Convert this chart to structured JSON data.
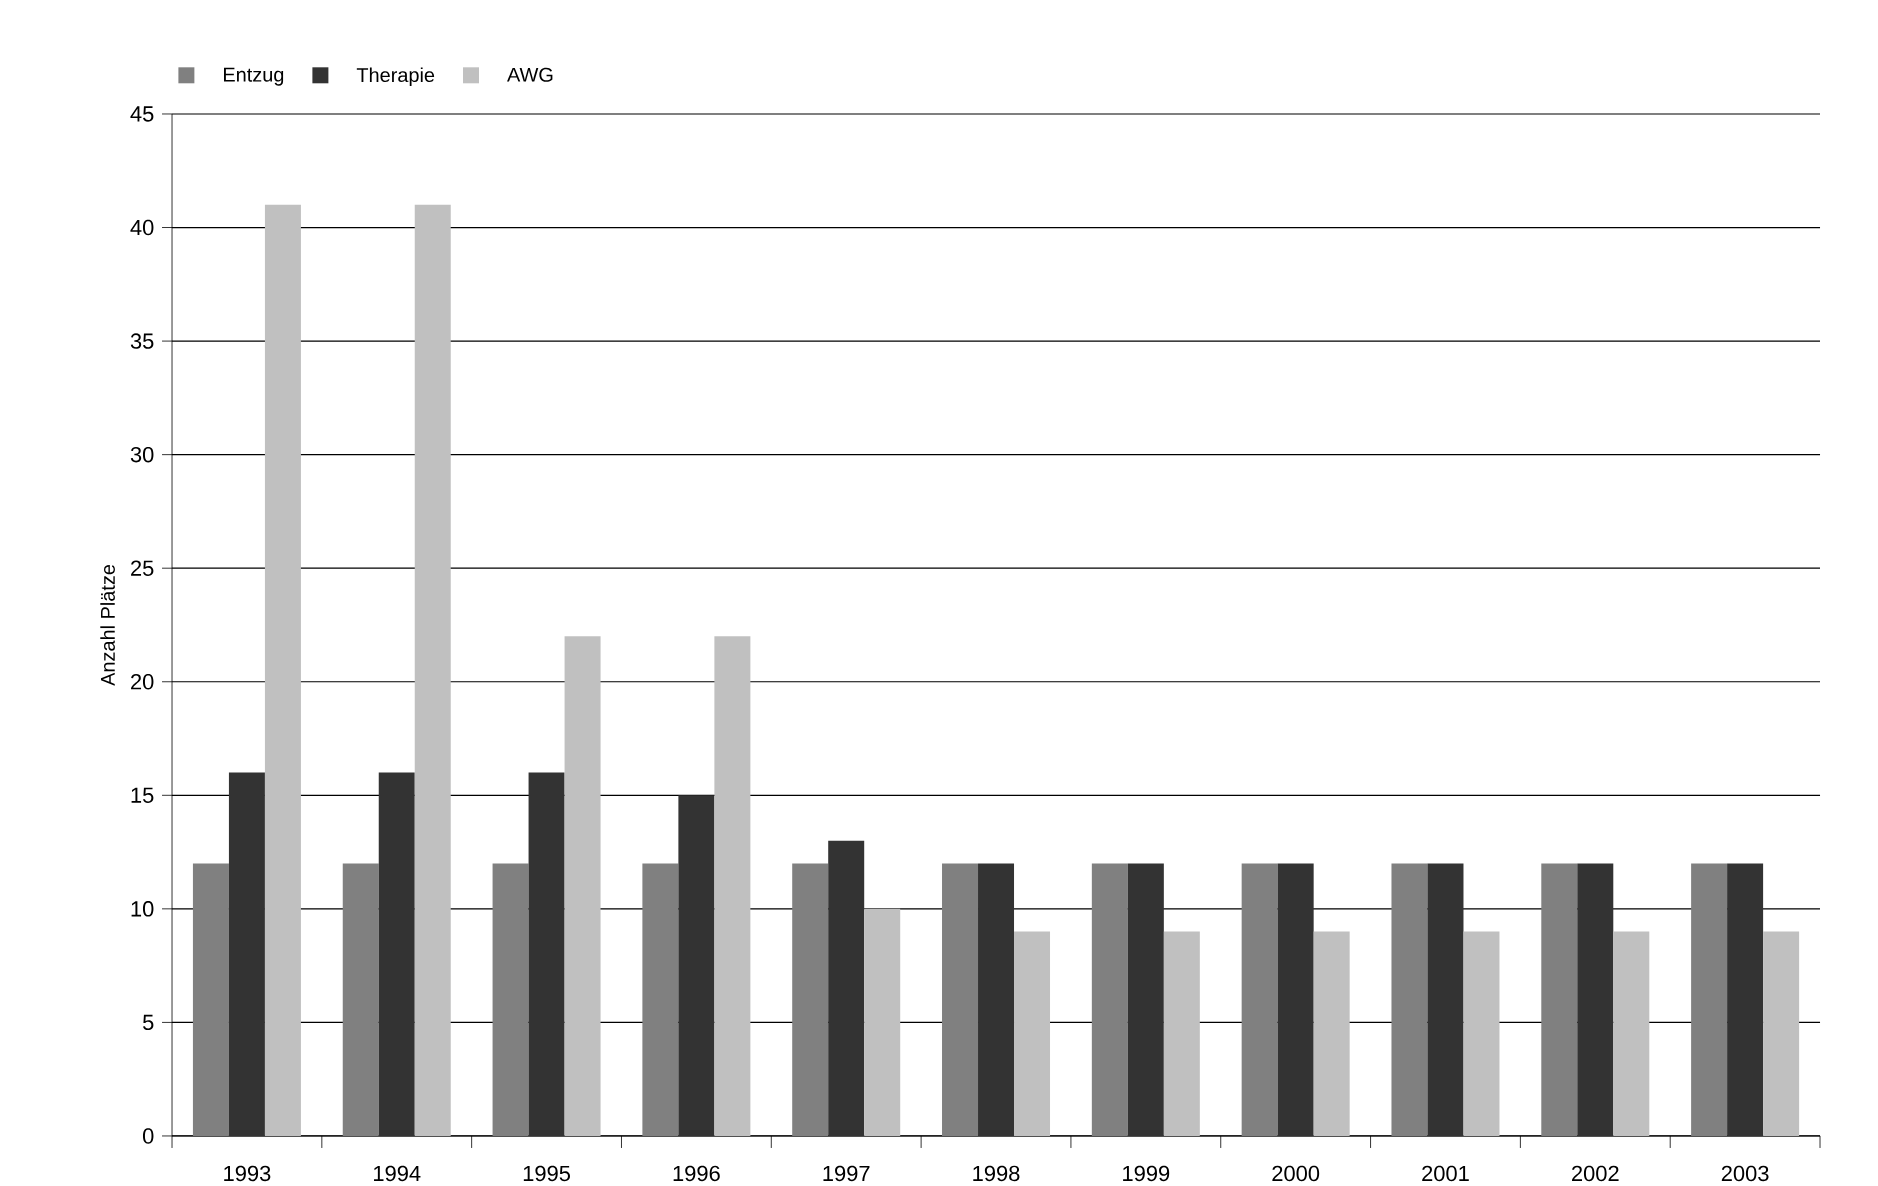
{
  "chart_data": {
    "type": "bar",
    "ylabel": "Anzahl Plätze",
    "categories": [
      "1993",
      "1994",
      "1995",
      "1996",
      "1997",
      "1998",
      "1999",
      "2000",
      "2001",
      "2002",
      "2003"
    ],
    "series": [
      {
        "name": "Entzug",
        "color": "#808080",
        "values": [
          12,
          12,
          12,
          12,
          12,
          12,
          12,
          12,
          12,
          12,
          12
        ]
      },
      {
        "name": "Therapie",
        "color": "#333333",
        "values": [
          16,
          16,
          16,
          15,
          13,
          12,
          12,
          12,
          12,
          12,
          12
        ]
      },
      {
        "name": "AWG",
        "color": "#c0c0c0",
        "values": [
          41,
          41,
          22,
          22,
          10,
          9,
          9,
          9,
          9,
          9,
          9
        ]
      }
    ],
    "ylim": [
      0,
      45
    ],
    "yticks": [
      0,
      5,
      10,
      15,
      20,
      25,
      30,
      35,
      40,
      45
    ],
    "grid": "y",
    "legend": "top left"
  }
}
